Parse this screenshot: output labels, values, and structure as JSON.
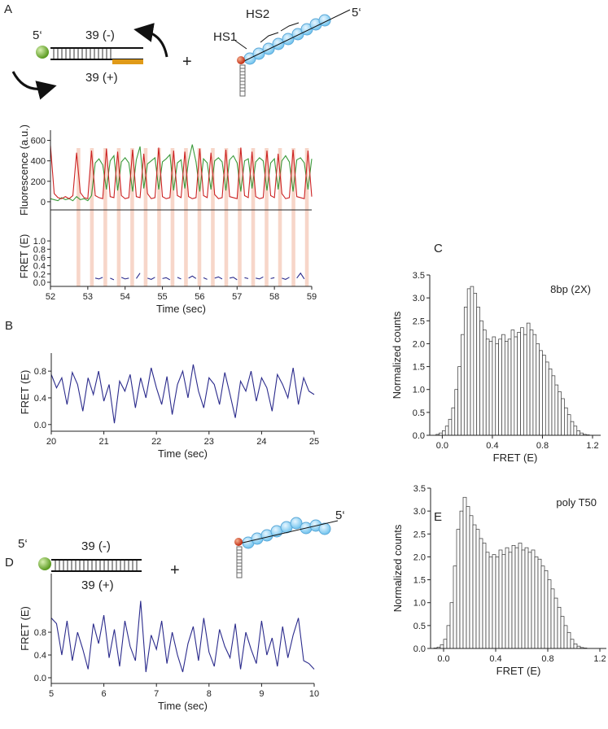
{
  "panel_labels": [
    "A",
    "B",
    "C",
    "D",
    "E"
  ],
  "diagram_a": {
    "five_prime_left": "5‘",
    "top_strand": "39 (-)",
    "bottom_strand": "39 (+)",
    "plus": "+",
    "hs1": "HS1",
    "hs2": "HS2",
    "five_prime_right": "5‘"
  },
  "diagram_d": {
    "five_prime_left": "5‘",
    "top_strand": "39 (-)",
    "bottom_strand": "39 (+)",
    "plus": "+",
    "five_prime_right": "5‘"
  },
  "chart_data": [
    {
      "type": "line",
      "y_label": "Fluorescence (a.u.)",
      "xlim": [
        52,
        59
      ],
      "ylim": [
        -80,
        700
      ],
      "yticks": [
        0,
        200,
        400,
        600
      ],
      "stripe_color": "#f7d6c9",
      "pulse_windows": [
        [
          52.7,
          52.8
        ],
        [
          53.06,
          53.16
        ],
        [
          53.42,
          53.52
        ],
        [
          53.78,
          53.88
        ],
        [
          54.14,
          54.24
        ],
        [
          54.5,
          54.6
        ],
        [
          54.86,
          54.96
        ],
        [
          55.22,
          55.32
        ],
        [
          55.58,
          55.68
        ],
        [
          55.94,
          56.04
        ],
        [
          56.3,
          56.4
        ],
        [
          56.66,
          56.76
        ],
        [
          57.02,
          57.12
        ],
        [
          57.38,
          57.48
        ],
        [
          57.74,
          57.84
        ],
        [
          58.1,
          58.2
        ],
        [
          58.46,
          58.56
        ],
        [
          58.82,
          58.92
        ]
      ],
      "x": [
        52,
        52.1,
        52.2,
        52.3,
        52.4,
        52.5,
        52.6,
        52.7,
        52.8,
        52.9,
        53,
        53.1,
        53.2,
        53.3,
        53.4,
        53.5,
        53.6,
        53.7,
        53.8,
        53.9,
        54,
        54.1,
        54.2,
        54.3,
        54.4,
        54.5,
        54.6,
        54.7,
        54.8,
        54.9,
        55,
        55.1,
        55.2,
        55.3,
        55.4,
        55.5,
        55.6,
        55.7,
        55.8,
        55.9,
        56,
        56.1,
        56.2,
        56.3,
        56.4,
        56.5,
        56.6,
        56.7,
        56.8,
        56.9,
        57,
        57.1,
        57.2,
        57.3,
        57.4,
        57.5,
        57.6,
        57.7,
        57.8,
        57.9,
        58,
        58.1,
        58.2,
        58.3,
        58.4,
        58.5,
        58.6,
        58.7,
        58.8,
        58.9,
        59
      ],
      "series": [
        {
          "color": "#3a9a3a",
          "values": [
            30,
            20,
            10,
            40,
            20,
            30,
            10,
            50,
            20,
            30,
            10,
            60,
            380,
            420,
            360,
            120,
            400,
            450,
            110,
            390,
            430,
            380,
            100,
            410,
            540,
            130,
            370,
            400,
            430,
            120,
            390,
            420,
            460,
            110,
            380,
            410,
            130,
            400,
            560,
            390,
            100,
            420,
            380,
            120,
            400,
            430,
            390,
            110,
            410,
            450,
            380,
            100,
            400,
            420,
            130,
            390,
            430,
            400,
            110,
            380,
            420,
            120,
            400,
            450,
            390,
            100,
            410,
            430,
            380,
            120,
            420
          ]
        },
        {
          "color": "#cc2222",
          "values": [
            550,
            80,
            40,
            30,
            50,
            30,
            60,
            480,
            90,
            40,
            30,
            500,
            60,
            40,
            30,
            520,
            50,
            40,
            490,
            60,
            30,
            40,
            510,
            50,
            40,
            470,
            80,
            30,
            40,
            530,
            50,
            30,
            40,
            500,
            60,
            40,
            490,
            50,
            30,
            40,
            520,
            60,
            40,
            480,
            70,
            30,
            40,
            510,
            50,
            40,
            30,
            530,
            60,
            40,
            490,
            50,
            30,
            40,
            500,
            60,
            40,
            470,
            80,
            30,
            40,
            510,
            50,
            40,
            30,
            500,
            50
          ]
        }
      ]
    },
    {
      "type": "line",
      "y_label": "FRET (E)",
      "x_label": "Time (sec)",
      "xlim": [
        52,
        59
      ],
      "ylim": [
        -0.1,
        1.75
      ],
      "xticks": [
        52,
        53,
        54,
        55,
        56,
        57,
        58,
        59
      ],
      "yticks": [
        {
          "value": 0,
          "label": "0.0"
        },
        0.2,
        0.4,
        0.6,
        0.8,
        {
          "value": 1,
          "label": "1.0"
        }
      ],
      "x": [
        52,
        52.1,
        52.2,
        52.3,
        52.4,
        52.5,
        52.6,
        52.7,
        52.8,
        52.9,
        53,
        53.1,
        53.2,
        53.3,
        53.4,
        53.5,
        53.6,
        53.7,
        53.8,
        53.9,
        54,
        54.1,
        54.2,
        54.3,
        54.4,
        54.5,
        54.6,
        54.7,
        54.8,
        54.9,
        55,
        55.1,
        55.2,
        55.3,
        55.4,
        55.5,
        55.6,
        55.7,
        55.8,
        55.9,
        56,
        56.1,
        56.2,
        56.3,
        56.4,
        56.5,
        56.6,
        56.7,
        56.8,
        56.9,
        57,
        57.1,
        57.2,
        57.3,
        57.4,
        57.5,
        57.6,
        57.7,
        57.8,
        57.9,
        58,
        58.1,
        58.2,
        58.3,
        58.4,
        58.5,
        58.6,
        58.7,
        58.8,
        58.9,
        59
      ],
      "series": [
        {
          "color": "#2b2b8c",
          "values": [
            null,
            null,
            null,
            null,
            null,
            null,
            null,
            null,
            null,
            null,
            null,
            null,
            0.1,
            0.08,
            0.12,
            null,
            0.1,
            0.06,
            null,
            0.12,
            0.08,
            0.1,
            null,
            0.09,
            0.22,
            null,
            0.1,
            0.07,
            0.12,
            null,
            0.09,
            0.11,
            0.06,
            null,
            0.12,
            0.08,
            null,
            0.1,
            0.15,
            0.09,
            null,
            0.11,
            0.07,
            null,
            0.1,
            0.13,
            0.08,
            null,
            0.1,
            0.12,
            0.06,
            null,
            0.11,
            0.09,
            null,
            0.1,
            0.08,
            0.13,
            null,
            0.09,
            0.11,
            null,
            0.1,
            0.07,
            0.12,
            null,
            0.1,
            0.22,
            0.08,
            null,
            0.1
          ]
        }
      ]
    },
    {
      "type": "line",
      "y_label": "FRET (E)",
      "x_label": "Time (sec)",
      "xlim": [
        20,
        25
      ],
      "ylim": [
        -0.1,
        1.07
      ],
      "xticks": [
        20,
        21,
        22,
        23,
        24,
        25
      ],
      "yticks": [
        {
          "value": 0,
          "label": "0.0"
        },
        0.4,
        0.8
      ],
      "x": [
        20,
        20.1,
        20.2,
        20.3,
        20.4,
        20.5,
        20.6,
        20.7,
        20.8,
        20.9,
        21,
        21.1,
        21.2,
        21.3,
        21.4,
        21.5,
        21.6,
        21.7,
        21.8,
        21.9,
        22,
        22.1,
        22.2,
        22.3,
        22.4,
        22.5,
        22.6,
        22.7,
        22.8,
        22.9,
        23,
        23.1,
        23.2,
        23.3,
        23.4,
        23.5,
        23.6,
        23.7,
        23.8,
        23.9,
        24,
        24.1,
        24.2,
        24.3,
        24.4,
        24.5,
        24.6,
        24.7,
        24.8,
        24.9,
        25
      ],
      "series": [
        {
          "color": "#2b2b8c",
          "values": [
            0.75,
            0.55,
            0.7,
            0.3,
            0.78,
            0.6,
            0.2,
            0.7,
            0.45,
            0.8,
            0.35,
            0.6,
            0.02,
            0.65,
            0.5,
            0.75,
            0.25,
            0.7,
            0.4,
            0.85,
            0.55,
            0.3,
            0.72,
            0.15,
            0.6,
            0.8,
            0.4,
            0.9,
            0.5,
            0.25,
            0.7,
            0.6,
            0.3,
            0.78,
            0.45,
            0.1,
            0.65,
            0.5,
            0.8,
            0.35,
            0.7,
            0.55,
            0.2,
            0.75,
            0.6,
            0.4,
            0.85,
            0.3,
            0.7,
            0.5,
            0.45
          ]
        }
      ]
    },
    {
      "type": "line",
      "y_label": "FRET (E)",
      "x_label": "Time (sec)",
      "xlim": [
        5,
        10
      ],
      "ylim": [
        -0.1,
        1.83
      ],
      "xticks": [
        5,
        6,
        7,
        8,
        9,
        10
      ],
      "yticks": [
        {
          "value": 0,
          "label": "0.0"
        },
        0.4,
        0.8
      ],
      "x": [
        5,
        5.1,
        5.2,
        5.3,
        5.4,
        5.5,
        5.6,
        5.7,
        5.8,
        5.9,
        6,
        6.1,
        6.2,
        6.3,
        6.4,
        6.5,
        6.6,
        6.7,
        6.8,
        6.9,
        7,
        7.1,
        7.2,
        7.3,
        7.4,
        7.5,
        7.6,
        7.7,
        7.8,
        7.9,
        8,
        8.1,
        8.2,
        8.3,
        8.4,
        8.5,
        8.6,
        8.7,
        8.8,
        8.9,
        9,
        9.1,
        9.2,
        9.3,
        9.4,
        9.5,
        9.6,
        9.7,
        9.8,
        9.9,
        10
      ],
      "series": [
        {
          "color": "#2b2b8c",
          "values": [
            1.05,
            0.95,
            0.4,
            1.0,
            0.3,
            0.8,
            0.5,
            0.15,
            0.95,
            0.6,
            1.1,
            0.35,
            0.85,
            0.2,
            1.0,
            0.55,
            0.3,
            1.35,
            0.1,
            0.75,
            0.5,
            1.0,
            0.25,
            0.8,
            0.4,
            0.1,
            0.6,
            0.9,
            0.3,
            1.05,
            0.45,
            0.2,
            0.85,
            0.55,
            0.35,
            0.95,
            0.15,
            0.8,
            0.5,
            0.25,
            1.0,
            0.4,
            0.7,
            0.2,
            0.9,
            0.35,
            0.75,
            1.05,
            0.3,
            0.25,
            0.15
          ]
        }
      ]
    },
    {
      "type": "histogram",
      "annotation": "8bp (2X)",
      "x_label": "FRET (E)",
      "y_label": "Normalized counts",
      "xlim": [
        -0.1,
        1.265
      ],
      "ylim": [
        0,
        3.5
      ],
      "xticks": [
        {
          "value": 0,
          "label": "0.0"
        },
        0.4,
        0.8,
        1.2
      ],
      "yticks": [
        {
          "value": 0,
          "label": "0.0"
        },
        0.5,
        {
          "value": 1,
          "label": "1.0"
        },
        1.5,
        {
          "value": 2,
          "label": "2.0"
        },
        2.5,
        {
          "value": 3,
          "label": "3.0"
        },
        3.5
      ],
      "bins": [
        -0.1,
        -0.075,
        -0.05,
        -0.025,
        0,
        0.025,
        0.05,
        0.075,
        0.1,
        0.125,
        0.15,
        0.175,
        0.2,
        0.225,
        0.25,
        0.275,
        0.3,
        0.325,
        0.35,
        0.375,
        0.4,
        0.425,
        0.45,
        0.475,
        0.5,
        0.525,
        0.55,
        0.575,
        0.6,
        0.625,
        0.65,
        0.675,
        0.7,
        0.725,
        0.75,
        0.775,
        0.8,
        0.825,
        0.85,
        0.875,
        0.9,
        0.925,
        0.95,
        0.975,
        1,
        1.025,
        1.05,
        1.075,
        1.1,
        1.125,
        1.15,
        1.175,
        1.2,
        1.225,
        1.25
      ],
      "values": [
        0,
        0,
        0.02,
        0.05,
        0.1,
        0.2,
        0.35,
        0.6,
        1.0,
        1.5,
        2.2,
        2.8,
        3.2,
        3.25,
        3.1,
        2.8,
        2.5,
        2.3,
        2.1,
        2.05,
        2.15,
        2.0,
        2.1,
        2.2,
        2.05,
        2.1,
        2.3,
        2.15,
        2.25,
        2.35,
        2.2,
        2.45,
        2.3,
        2.2,
        2.0,
        1.85,
        1.75,
        1.6,
        1.45,
        1.3,
        1.1,
        0.95,
        0.8,
        0.6,
        0.45,
        0.3,
        0.2,
        0.1,
        0.05,
        0.02,
        0.01,
        0,
        0,
        0
      ]
    },
    {
      "type": "histogram",
      "annotation": "poly T50",
      "x_label": "FRET (E)",
      "y_label": "Normalized counts",
      "xlim": [
        -0.1,
        1.25
      ],
      "ylim": [
        0,
        3.5
      ],
      "xticks": [
        {
          "value": 0,
          "label": "0.0"
        },
        0.4,
        0.8,
        1.2
      ],
      "yticks": [
        {
          "value": 0,
          "label": "0.0"
        },
        0.5,
        {
          "value": 1,
          "label": "1.0"
        },
        1.5,
        {
          "value": 2,
          "label": "2.0"
        },
        2.5,
        {
          "value": 3,
          "label": "3.0"
        },
        3.5
      ],
      "bins": [
        -0.1,
        -0.075,
        -0.05,
        -0.025,
        0,
        0.025,
        0.05,
        0.075,
        0.1,
        0.125,
        0.15,
        0.175,
        0.2,
        0.225,
        0.25,
        0.275,
        0.3,
        0.325,
        0.35,
        0.375,
        0.4,
        0.425,
        0.45,
        0.475,
        0.5,
        0.525,
        0.55,
        0.575,
        0.6,
        0.625,
        0.65,
        0.675,
        0.7,
        0.725,
        0.75,
        0.775,
        0.8,
        0.825,
        0.85,
        0.875,
        0.9,
        0.925,
        0.95,
        0.975,
        1,
        1.025,
        1.05,
        1.075,
        1.1,
        1.125,
        1.15,
        1.175,
        1.2,
        1.225,
        1.25
      ],
      "values": [
        0,
        0.01,
        0.03,
        0.08,
        0.2,
        0.5,
        1.0,
        1.8,
        2.6,
        3.0,
        3.3,
        3.1,
        2.9,
        2.7,
        2.6,
        2.4,
        2.3,
        2.1,
        2.0,
        2.05,
        2.0,
        2.15,
        2.05,
        2.2,
        2.1,
        2.25,
        2.2,
        2.3,
        2.15,
        2.2,
        2.1,
        2.15,
        2.0,
        1.95,
        1.8,
        1.7,
        1.5,
        1.3,
        1.1,
        0.9,
        0.7,
        0.5,
        0.35,
        0.2,
        0.1,
        0.05,
        0.02,
        0.01,
        0,
        0,
        0,
        0,
        0,
        0
      ]
    }
  ]
}
